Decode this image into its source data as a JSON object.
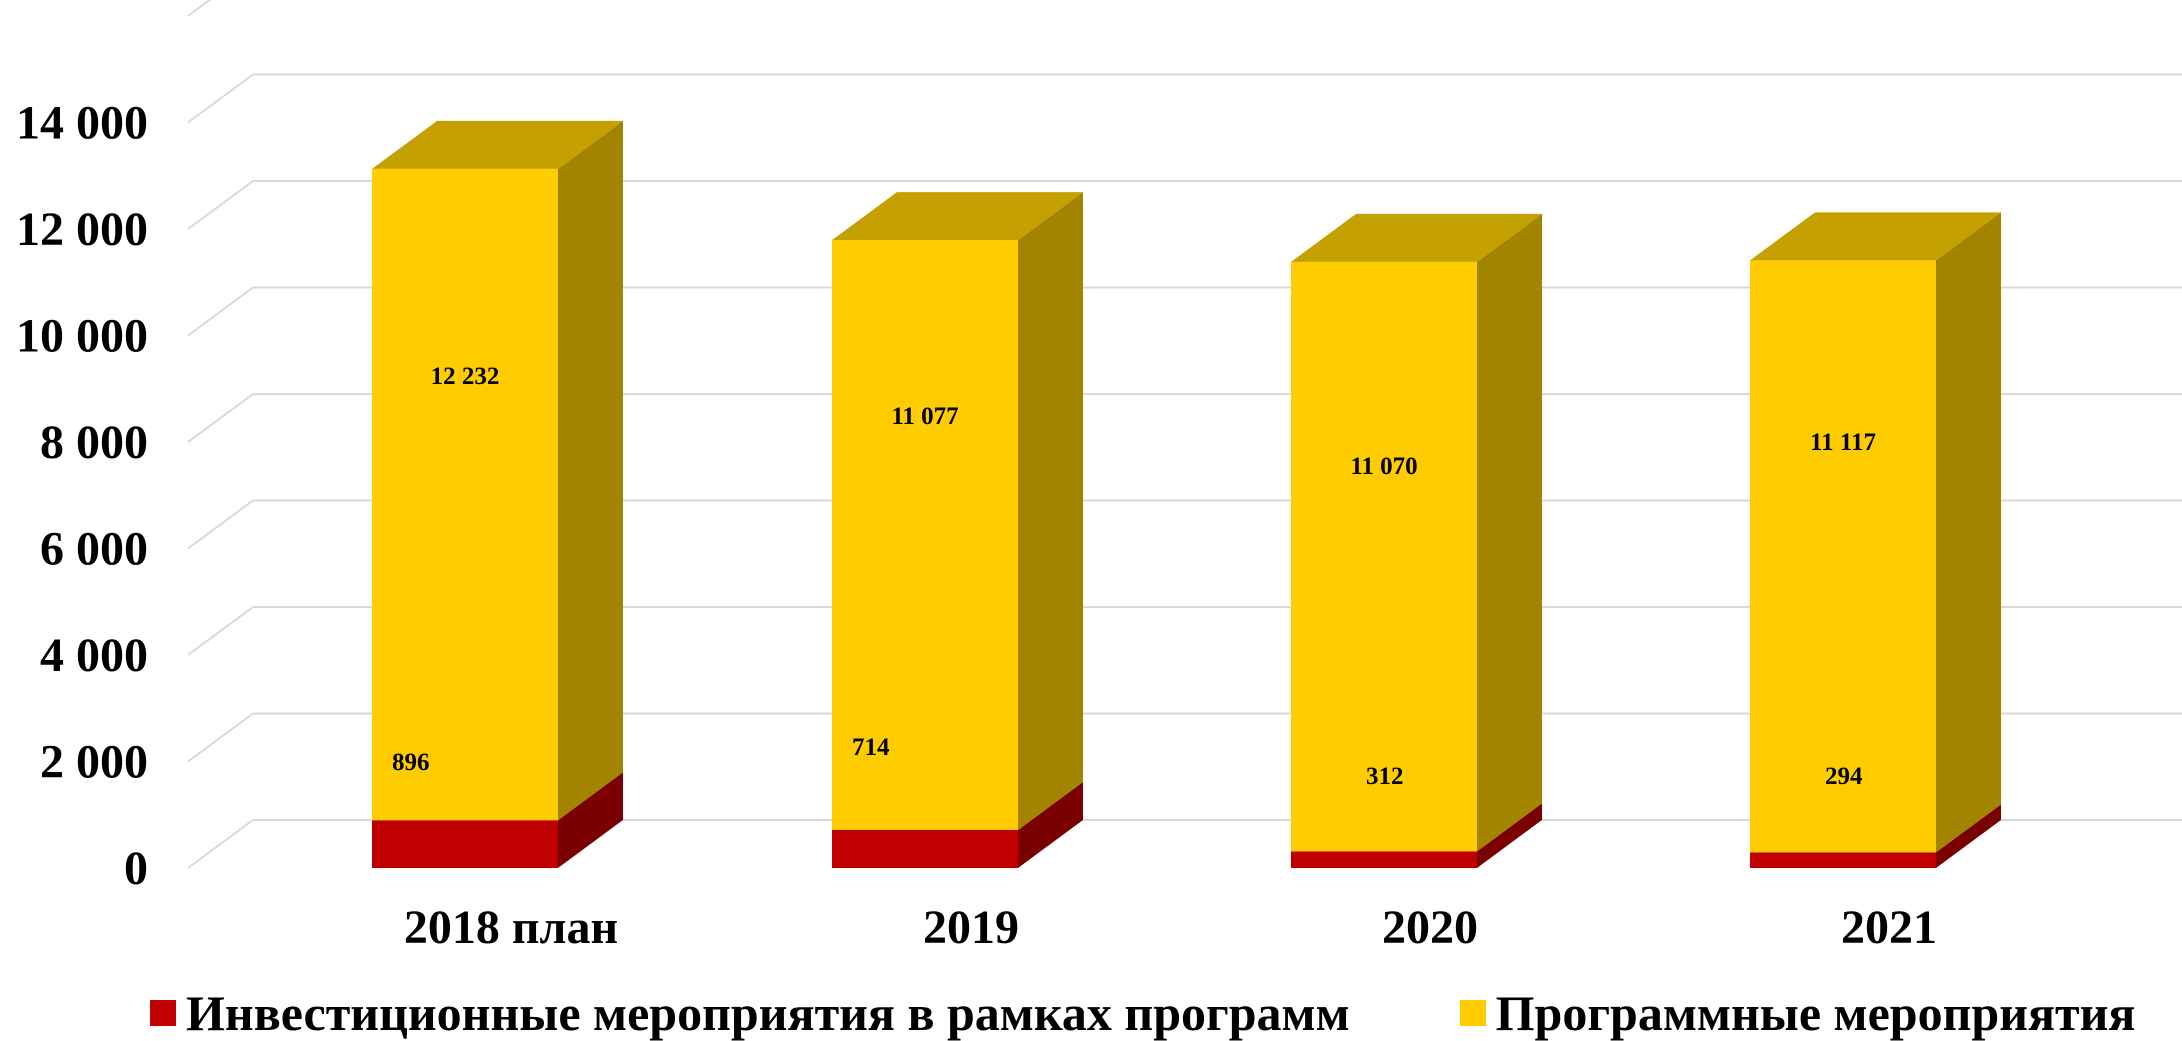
{
  "chart_data": {
    "type": "bar",
    "stacked": true,
    "three_d": true,
    "categories": [
      "2018 план",
      "2019",
      "2020",
      "2021"
    ],
    "series": [
      {
        "name": "Инвестиционные мероприятия в рамках программ",
        "values": [
          896,
          714,
          312,
          294
        ],
        "color": "#C00000",
        "side_color": "#7A0000"
      },
      {
        "name": "Программные мероприятия",
        "values": [
          12232,
          11077,
          11070,
          11117
        ],
        "color": "#FFCC00",
        "side_color": "#A38400",
        "top_color": "#C4A000"
      }
    ],
    "data_labels": {
      "series_0": [
        "896",
        "714",
        "312",
        "294"
      ],
      "series_1": [
        "12 232",
        "11 077",
        "11 070",
        "11 117"
      ]
    },
    "y_tick_labels": [
      "0",
      "2 000",
      "4 000",
      "6 000",
      "8 000",
      "10 000",
      "12 000",
      "14 000"
    ],
    "ylim": [
      0,
      16000
    ],
    "grid": true,
    "legend_position": "bottom",
    "title": "",
    "xlabel": "",
    "ylabel": ""
  }
}
